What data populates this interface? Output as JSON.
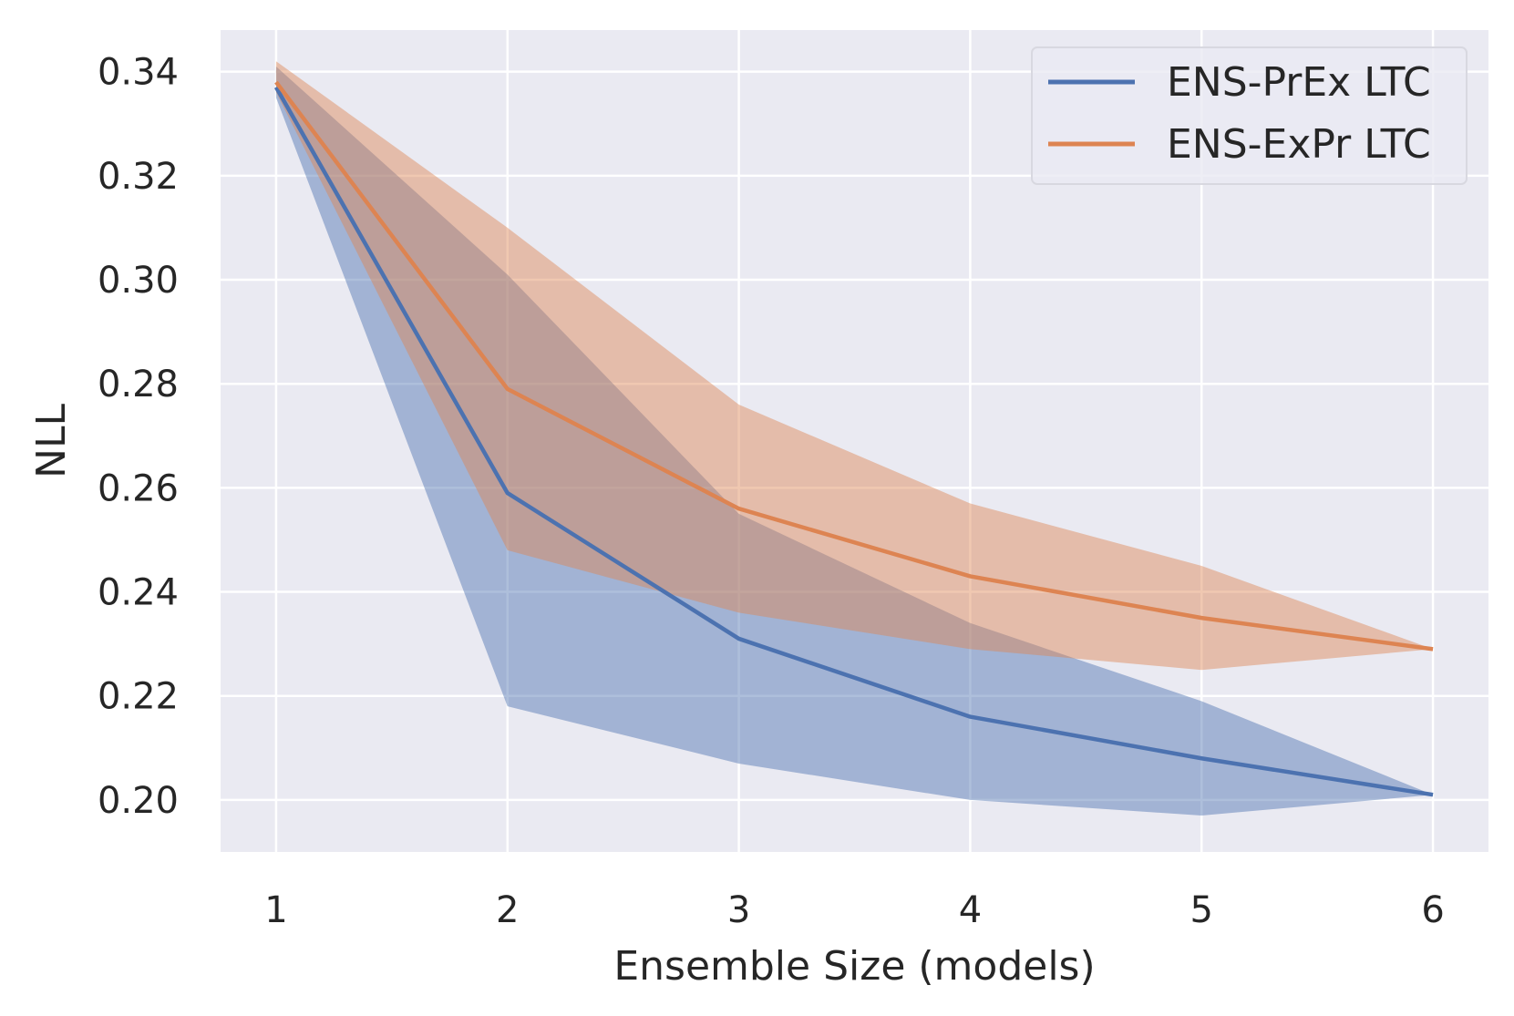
{
  "chart_data": {
    "type": "line",
    "title": "",
    "xlabel": "Ensemble Size (models)",
    "ylabel": "NLL",
    "x": [
      1,
      2,
      3,
      4,
      5,
      6
    ],
    "xlim": [
      0.76,
      6.24
    ],
    "ylim": [
      0.19,
      0.348
    ],
    "xticks": [
      "1",
      "2",
      "3",
      "4",
      "5",
      "6"
    ],
    "yticks": [
      "0.20",
      "0.22",
      "0.24",
      "0.26",
      "0.28",
      "0.30",
      "0.32",
      "0.34"
    ],
    "ytick_values": [
      0.2,
      0.22,
      0.24,
      0.26,
      0.28,
      0.3,
      0.32,
      0.34
    ],
    "grid": true,
    "legend_position": "top-right",
    "series": [
      {
        "name": "ENS-PrEx LTC",
        "color": "#4c72b0",
        "values": [
          0.337,
          0.259,
          0.231,
          0.216,
          0.208,
          0.201
        ],
        "lower": [
          0.335,
          0.218,
          0.207,
          0.2,
          0.197,
          0.201
        ],
        "upper": [
          0.341,
          0.301,
          0.255,
          0.234,
          0.219,
          0.201
        ]
      },
      {
        "name": "ENS-ExPr LTC",
        "color": "#dd8452",
        "values": [
          0.338,
          0.279,
          0.256,
          0.243,
          0.235,
          0.229
        ],
        "lower": [
          0.336,
          0.248,
          0.236,
          0.229,
          0.225,
          0.229
        ],
        "upper": [
          0.342,
          0.31,
          0.276,
          0.257,
          0.245,
          0.229
        ]
      }
    ]
  }
}
